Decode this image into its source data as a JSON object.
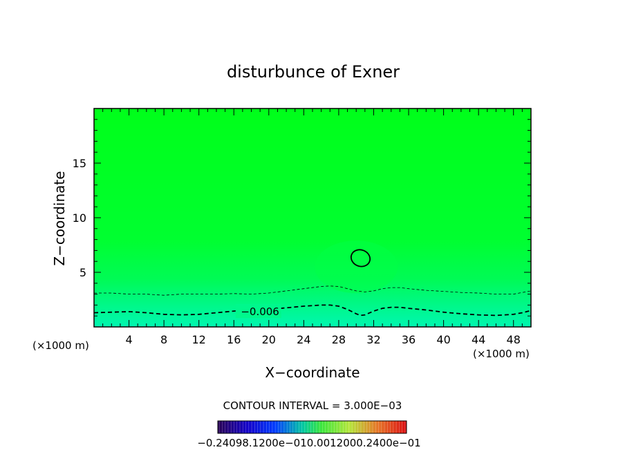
{
  "chart_data": {
    "type": "heatmap",
    "title": "disturbunce of Exner",
    "xlabel": "X−coordinate",
    "ylabel": "Z−coordinate",
    "x_unit_left": "(×1000 m)",
    "x_unit_right": "(×1000 m)",
    "xlim": [
      0,
      50
    ],
    "ylim": [
      0,
      20
    ],
    "x_ticks": [
      4,
      8,
      12,
      16,
      20,
      24,
      28,
      32,
      36,
      40,
      44,
      48
    ],
    "y_ticks": [
      5,
      10,
      15
    ],
    "x_tick_labels": [
      "4",
      "8",
      "12",
      "16",
      "20",
      "24",
      "28",
      "32",
      "36",
      "40",
      "44",
      "48"
    ],
    "y_tick_labels": [
      "5",
      "10",
      "15"
    ],
    "contours": [
      {
        "level": -0.006,
        "style": "dashed-thick",
        "label": "−0.006",
        "x": [
          0,
          2,
          4,
          6,
          8,
          10,
          12,
          14,
          16,
          18,
          20,
          22,
          24,
          26,
          27,
          28,
          29,
          30,
          30.5,
          31,
          32,
          33,
          34,
          35,
          36,
          38,
          40,
          42,
          44,
          46,
          48,
          49,
          50
        ],
        "y": [
          1.3,
          1.35,
          1.4,
          1.3,
          1.15,
          1.1,
          1.15,
          1.3,
          1.45,
          1.55,
          1.6,
          1.75,
          1.9,
          2.0,
          2.0,
          1.9,
          1.6,
          1.2,
          1.05,
          1.1,
          1.45,
          1.7,
          1.8,
          1.8,
          1.7,
          1.55,
          1.35,
          1.2,
          1.1,
          1.05,
          1.15,
          1.3,
          1.5
        ]
      },
      {
        "level": -0.003,
        "style": "dashed-thin",
        "x": [
          0,
          2,
          4,
          6,
          8,
          10,
          12,
          14,
          16,
          18,
          20,
          22,
          24,
          26,
          27,
          28,
          29,
          30,
          31,
          32,
          33,
          34,
          35,
          36,
          38,
          40,
          42,
          44,
          46,
          48,
          50
        ],
        "y": [
          3.1,
          3.1,
          3.0,
          3.0,
          2.9,
          3.0,
          3.0,
          3.0,
          3.05,
          3.0,
          3.1,
          3.3,
          3.5,
          3.7,
          3.75,
          3.7,
          3.5,
          3.3,
          3.2,
          3.3,
          3.5,
          3.6,
          3.6,
          3.5,
          3.35,
          3.25,
          3.15,
          3.1,
          3.0,
          3.0,
          3.3
        ]
      }
    ],
    "closed_contours": [
      {
        "level": 0.0,
        "style": "solid",
        "center_x": 30.5,
        "center_z": 6.3,
        "radius_x": 1.1,
        "radius_z": 0.75
      }
    ],
    "colorbar": {
      "contour_interval_text": "CONTOUR INTERVAL = 3.000E−03",
      "range": [
        -0.24,
        0.24
      ],
      "tick_labels_text": "−0.24098.1200e−010.0012000.2400e−01"
    },
    "colors": {
      "background_field": "#00ff22",
      "lower_field": "#00f7a0",
      "frame": "#000000"
    },
    "grid": false,
    "legend": "colorbar-bottom"
  }
}
